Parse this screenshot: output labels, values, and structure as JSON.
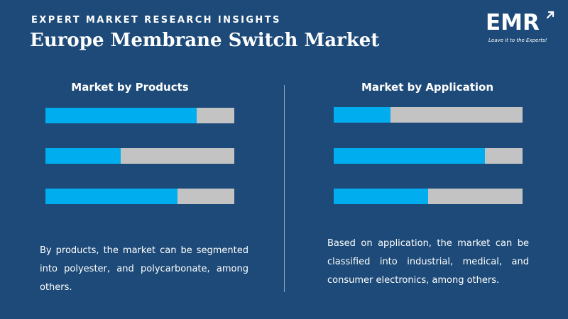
{
  "header": {
    "kicker": "EXPERT MARKET RESEARCH INSIGHTS",
    "title": "Europe Membrane Switch Market"
  },
  "logo": {
    "text": "EMR",
    "tagline": "Leave it to the Experts!",
    "arrow_icon": "up-right-arrow-icon"
  },
  "colors": {
    "background": "#1d4a78",
    "bar_fill": "#00aeef",
    "bar_track": "#c3c3c3"
  },
  "chart_data": [
    {
      "type": "bar",
      "orientation": "horizontal",
      "title": "Market by Products",
      "values": [
        0.8,
        0.4,
        0.7
      ],
      "ylim": [
        0,
        1
      ]
    },
    {
      "type": "bar",
      "orientation": "horizontal",
      "title": "Market by Application",
      "values": [
        0.3,
        0.8,
        0.5
      ],
      "ylim": [
        0,
        1
      ]
    }
  ],
  "left_description": "By products, the market can be segmented into polyester, and polycarbonate, among others.",
  "right_description": "Based on application, the market can be classified into industrial, medical, and consumer electronics, among others."
}
